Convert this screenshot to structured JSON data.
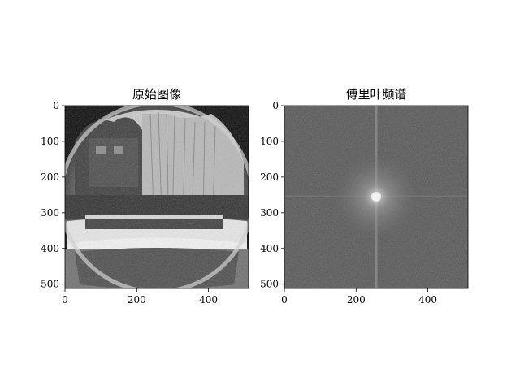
{
  "figure": {
    "panels": [
      {
        "title": "原始图像"
      },
      {
        "title": "傅里叶频谱"
      }
    ]
  },
  "chart_data": [
    {
      "type": "image",
      "title": "原始图像",
      "colormap": "gray",
      "content": "fisheye-lens grayscale photo of a snowy courtyard with trees, bushes and a circular hedge",
      "image_size": [
        512,
        512
      ],
      "xlim": [
        0,
        512
      ],
      "ylim": [
        512,
        0
      ],
      "xticks": [
        0,
        200,
        400
      ],
      "yticks": [
        0,
        100,
        200,
        300,
        400,
        500
      ]
    },
    {
      "type": "image",
      "title": "傅里叶频谱",
      "colormap": "gray",
      "content": "log-magnitude Fourier spectrum, bright center at (256, 256) with a vertical and horizontal bright cross",
      "image_size": [
        512,
        512
      ],
      "center": [
        256,
        256
      ],
      "xlim": [
        0,
        512
      ],
      "ylim": [
        512,
        0
      ],
      "xticks": [
        0,
        200,
        400
      ],
      "yticks": [
        0,
        100,
        200,
        300,
        400,
        500
      ]
    }
  ]
}
